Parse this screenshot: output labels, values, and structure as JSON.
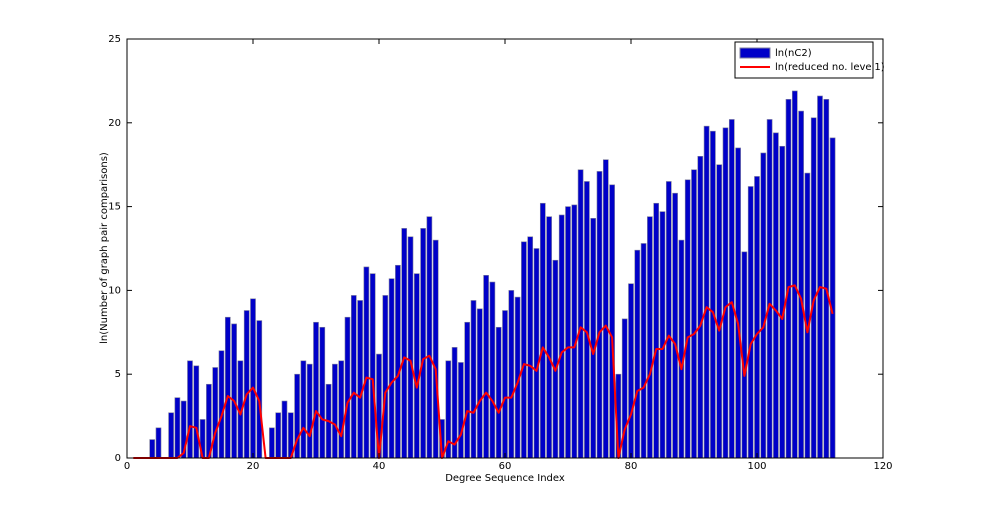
{
  "chart_data": {
    "type": "bar",
    "xlabel": "Degree Sequence Index",
    "ylabel": "ln(Number of graph pair comparisons)",
    "x": [
      1,
      2,
      3,
      4,
      5,
      6,
      7,
      8,
      9,
      10,
      11,
      12,
      13,
      14,
      15,
      16,
      17,
      18,
      19,
      20,
      21,
      22,
      23,
      24,
      25,
      26,
      27,
      28,
      29,
      30,
      31,
      32,
      33,
      34,
      35,
      36,
      37,
      38,
      39,
      40,
      41,
      42,
      43,
      44,
      45,
      46,
      47,
      48,
      49,
      50,
      51,
      52,
      53,
      54,
      55,
      56,
      57,
      58,
      59,
      60,
      61,
      62,
      63,
      64,
      65,
      66,
      67,
      68,
      69,
      70,
      71,
      72,
      73,
      74,
      75,
      76,
      77,
      78,
      79,
      80,
      81,
      82,
      83,
      84,
      85,
      86,
      87,
      88,
      89,
      90,
      91,
      92,
      93,
      94,
      95,
      96,
      97,
      98,
      99,
      100,
      101,
      102,
      103,
      104,
      105,
      106,
      107,
      108,
      109,
      110,
      111,
      112
    ],
    "series": [
      {
        "name": "ln(nC2)",
        "type": "bar",
        "color": "#0000c8",
        "edge_color": "#7f7f9f",
        "values": [
          0,
          0,
          0,
          1.1,
          1.8,
          0,
          2.7,
          3.6,
          3.4,
          5.8,
          5.5,
          2.3,
          4.4,
          5.4,
          6.4,
          8.4,
          8.0,
          5.8,
          8.8,
          9.5,
          8.2,
          0,
          1.8,
          2.7,
          3.4,
          2.7,
          5.0,
          5.8,
          5.6,
          8.1,
          7.8,
          4.4,
          5.6,
          5.8,
          8.4,
          9.7,
          9.4,
          11.4,
          11.0,
          6.2,
          9.7,
          10.7,
          11.5,
          13.7,
          13.2,
          11.0,
          13.7,
          14.4,
          13.0,
          2.3,
          5.8,
          6.6,
          5.7,
          8.1,
          9.4,
          8.9,
          10.9,
          10.5,
          7.8,
          8.8,
          10.0,
          9.6,
          12.9,
          13.2,
          12.5,
          15.2,
          14.4,
          11.8,
          14.5,
          15.0,
          15.1,
          17.2,
          16.5,
          14.3,
          17.1,
          17.8,
          16.3,
          5.0,
          8.3,
          10.4,
          12.4,
          12.8,
          14.4,
          15.2,
          14.7,
          16.5,
          15.8,
          13.0,
          16.6,
          17.2,
          18.0,
          19.8,
          19.5,
          17.5,
          19.7,
          20.2,
          18.5,
          12.3,
          16.2,
          16.8,
          18.2,
          20.2,
          19.4,
          18.6,
          21.4,
          21.9,
          20.7,
          17.0,
          20.3,
          21.6,
          21.4,
          19.1
        ]
      },
      {
        "name": "ln(reduced no. level1)",
        "type": "line",
        "color": "#ff0000",
        "values": [
          0,
          0,
          0,
          0,
          0,
          0,
          0,
          0,
          0.3,
          1.9,
          1.8,
          0,
          0,
          1.5,
          2.5,
          3.7,
          3.4,
          2.6,
          3.8,
          4.2,
          3.4,
          0,
          0,
          0,
          0,
          0,
          1.1,
          1.8,
          1.3,
          2.8,
          2.3,
          2.2,
          2.0,
          1.3,
          3.3,
          3.9,
          3.6,
          4.8,
          4.7,
          0,
          3.9,
          4.5,
          4.9,
          6.0,
          5.8,
          4.2,
          5.9,
          6.1,
          5.3,
          0,
          1.0,
          0.8,
          1.4,
          2.8,
          2.7,
          3.4,
          3.9,
          3.4,
          2.7,
          3.6,
          3.6,
          4.5,
          5.6,
          5.5,
          5.2,
          6.6,
          6.0,
          5.2,
          6.3,
          6.6,
          6.6,
          7.8,
          7.5,
          6.2,
          7.5,
          7.9,
          7.2,
          0,
          1.7,
          2.6,
          4.0,
          4.2,
          5.0,
          6.5,
          6.5,
          7.3,
          6.8,
          5.3,
          7.2,
          7.4,
          7.9,
          9.0,
          8.7,
          7.6,
          9.0,
          9.3,
          8.0,
          4.9,
          6.8,
          7.4,
          7.8,
          9.2,
          8.8,
          8.3,
          10.2,
          10.3,
          9.5,
          7.5,
          9.4,
          10.2,
          10.1,
          8.6
        ]
      }
    ],
    "xlim": [
      0,
      120
    ],
    "xticks": [
      0,
      20,
      40,
      60,
      80,
      100,
      120
    ],
    "ylim": [
      0,
      25
    ],
    "yticks": [
      0,
      5,
      10,
      15,
      20,
      25
    ],
    "grid": false,
    "legend": "upper right"
  }
}
